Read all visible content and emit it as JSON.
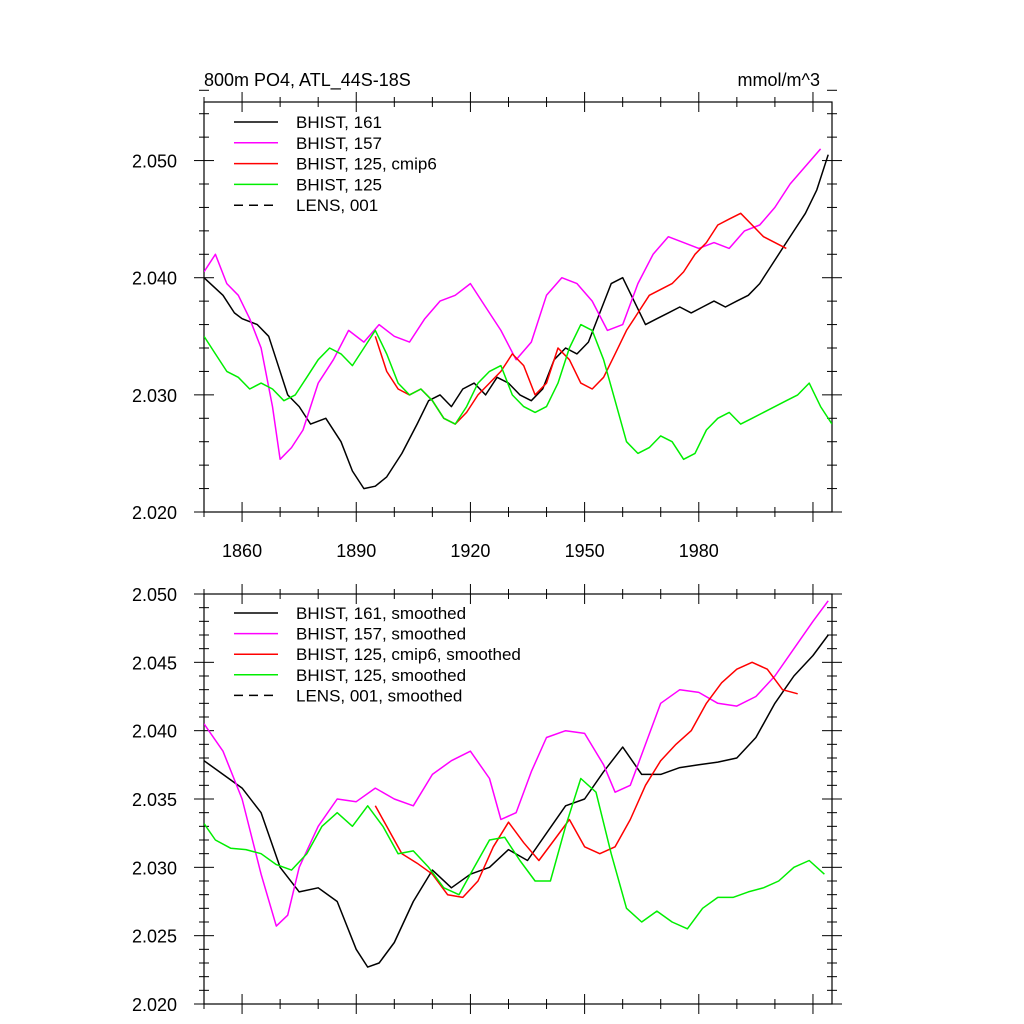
{
  "figure": {
    "title_left": "800m PO4, ATL_44S-18S",
    "title_right": "mmol/m^3"
  },
  "chart_data": [
    {
      "type": "line",
      "panel": "top",
      "title": "800m PO4, ATL_44S-18S",
      "units": "mmol/m^3",
      "xlim": [
        1850,
        2015
      ],
      "ylim": [
        2.02,
        2.055
      ],
      "x_tick_labels": [
        "1860",
        "1890",
        "1920",
        "1950",
        "1980"
      ],
      "y_tick_labels": [
        "2.020",
        "2.030",
        "2.040",
        "2.050"
      ],
      "legend_position": "top-left",
      "grid": false,
      "series": [
        {
          "name": "BHIST, 161",
          "color": "#000000",
          "dash": "solid",
          "x": [
            1850,
            1855,
            1858,
            1860,
            1864,
            1867,
            1869,
            1872,
            1875,
            1878,
            1882,
            1886,
            1889,
            1892,
            1895,
            1898,
            1902,
            1906,
            1909,
            1912,
            1915,
            1918,
            1921,
            1924,
            1927,
            1930,
            1933,
            1936,
            1939,
            1942,
            1945,
            1948,
            1951,
            1954,
            1957,
            1960,
            1963,
            1966,
            1969,
            1972,
            1975,
            1978,
            1981,
            1984,
            1987,
            1990,
            1993,
            1996,
            1999,
            2002,
            2005,
            2008,
            2011,
            2014
          ],
          "y": [
            2.04,
            2.0385,
            2.037,
            2.0365,
            2.036,
            2.035,
            2.033,
            2.03,
            2.029,
            2.0275,
            2.028,
            2.026,
            2.0235,
            2.022,
            2.0222,
            2.023,
            2.025,
            2.0275,
            2.0295,
            2.03,
            2.029,
            2.0305,
            2.031,
            2.03,
            2.0315,
            2.031,
            2.03,
            2.0295,
            2.0305,
            2.033,
            2.034,
            2.0335,
            2.0345,
            2.037,
            2.0395,
            2.04,
            2.038,
            2.036,
            2.0365,
            2.037,
            2.0375,
            2.037,
            2.0375,
            2.038,
            2.0375,
            2.038,
            2.0385,
            2.0395,
            2.041,
            2.0425,
            2.044,
            2.0455,
            2.0475,
            2.0505
          ]
        },
        {
          "name": "BHIST, 157",
          "color": "#ff00ff",
          "dash": "solid",
          "x": [
            1850,
            1853,
            1856,
            1859,
            1862,
            1865,
            1868,
            1870,
            1873,
            1876,
            1880,
            1884,
            1888,
            1892,
            1896,
            1900,
            1904,
            1908,
            1912,
            1916,
            1920,
            1924,
            1928,
            1932,
            1936,
            1940,
            1944,
            1948,
            1952,
            1956,
            1960,
            1964,
            1968,
            1972,
            1976,
            1980,
            1984,
            1988,
            1992,
            1996,
            2000,
            2004,
            2008,
            2012
          ],
          "y": [
            2.0405,
            2.042,
            2.0395,
            2.0385,
            2.0365,
            2.034,
            2.029,
            2.0245,
            2.0255,
            2.027,
            2.031,
            2.033,
            2.0355,
            2.0345,
            2.036,
            2.035,
            2.0345,
            2.0365,
            2.038,
            2.0385,
            2.0395,
            2.0375,
            2.0355,
            2.033,
            2.0345,
            2.0385,
            2.04,
            2.0395,
            2.038,
            2.0355,
            2.036,
            2.0395,
            2.042,
            2.0435,
            2.043,
            2.0425,
            2.043,
            2.0425,
            2.044,
            2.0445,
            2.046,
            2.048,
            2.0495,
            2.051
          ]
        },
        {
          "name": "BHIST, 125, cmip6",
          "color": "#ff0000",
          "dash": "solid",
          "x": [
            1895,
            1898,
            1901,
            1904,
            1907,
            1910,
            1913,
            1916,
            1919,
            1922,
            1925,
            1928,
            1931,
            1934,
            1937,
            1940,
            1943,
            1946,
            1949,
            1952,
            1955,
            1958,
            1961,
            1964,
            1967,
            1970,
            1973,
            1976,
            1979,
            1982,
            1985,
            1988,
            1991,
            1994,
            1997,
            2000,
            2003
          ],
          "y": [
            2.035,
            2.032,
            2.0305,
            2.03,
            2.0305,
            2.0295,
            2.028,
            2.0275,
            2.0285,
            2.03,
            2.031,
            2.032,
            2.0335,
            2.0325,
            2.03,
            2.031,
            2.034,
            2.033,
            2.031,
            2.0305,
            2.0315,
            2.0335,
            2.0355,
            2.037,
            2.0385,
            2.039,
            2.0395,
            2.0405,
            2.042,
            2.043,
            2.0445,
            2.045,
            2.0455,
            2.0445,
            2.0435,
            2.043,
            2.0425
          ]
        },
        {
          "name": "BHIST, 125",
          "color": "#00ee00",
          "dash": "solid",
          "x": [
            1850,
            1853,
            1856,
            1859,
            1862,
            1865,
            1868,
            1871,
            1874,
            1877,
            1880,
            1883,
            1886,
            1889,
            1892,
            1895,
            1898,
            1901,
            1904,
            1907,
            1910,
            1913,
            1916,
            1919,
            1922,
            1925,
            1928,
            1931,
            1934,
            1937,
            1940,
            1943,
            1946,
            1949,
            1952,
            1955,
            1958,
            1961,
            1964,
            1967,
            1970,
            1973,
            1976,
            1979,
            1982,
            1985,
            1988,
            1991,
            1994,
            1997,
            2000,
            2003,
            2006,
            2009,
            2012,
            2015
          ],
          "y": [
            2.035,
            2.0335,
            2.032,
            2.0315,
            2.0305,
            2.031,
            2.0305,
            2.0295,
            2.03,
            2.0315,
            2.033,
            2.034,
            2.0335,
            2.0325,
            2.034,
            2.0355,
            2.0335,
            2.031,
            2.03,
            2.0305,
            2.0295,
            2.028,
            2.0275,
            2.029,
            2.031,
            2.032,
            2.0325,
            2.03,
            2.029,
            2.0285,
            2.029,
            2.031,
            2.034,
            2.036,
            2.0355,
            2.033,
            2.0295,
            2.026,
            2.025,
            2.0255,
            2.0265,
            2.026,
            2.0245,
            2.025,
            2.027,
            2.028,
            2.0285,
            2.0275,
            2.028,
            2.0285,
            2.029,
            2.0295,
            2.03,
            2.031,
            2.029,
            2.0275
          ]
        },
        {
          "name": "LENS, 001",
          "color": "#000000",
          "dash": "dashed",
          "x": [],
          "y": []
        }
      ]
    },
    {
      "type": "line",
      "panel": "bottom",
      "xlim": [
        1850,
        2015
      ],
      "ylim": [
        2.02,
        2.05
      ],
      "x_tick_labels": [],
      "y_tick_labels": [
        "2.020",
        "2.025",
        "2.030",
        "2.035",
        "2.040",
        "2.045",
        "2.050"
      ],
      "legend_position": "top-left",
      "grid": false,
      "series": [
        {
          "name": "BHIST, 161, smoothed",
          "color": "#000000",
          "dash": "solid",
          "x": [
            1850,
            1855,
            1860,
            1865,
            1870,
            1875,
            1880,
            1885,
            1890,
            1893,
            1896,
            1900,
            1905,
            1910,
            1915,
            1920,
            1925,
            1930,
            1935,
            1940,
            1945,
            1950,
            1955,
            1960,
            1965,
            1970,
            1975,
            1980,
            1985,
            1990,
            1995,
            2000,
            2005,
            2010,
            2014
          ],
          "y": [
            2.0378,
            2.0368,
            2.0358,
            2.034,
            2.03,
            2.0282,
            2.0285,
            2.0275,
            2.024,
            2.0227,
            2.023,
            2.0245,
            2.0275,
            2.0298,
            2.0285,
            2.0295,
            2.03,
            2.0313,
            2.0305,
            2.0325,
            2.0345,
            2.035,
            2.037,
            2.0388,
            2.0368,
            2.0368,
            2.0373,
            2.0375,
            2.0377,
            2.038,
            2.0395,
            2.042,
            2.044,
            2.0455,
            2.047
          ]
        },
        {
          "name": "BHIST, 157, smoothed",
          "color": "#ff00ff",
          "dash": "solid",
          "x": [
            1850,
            1855,
            1860,
            1865,
            1869,
            1872,
            1875,
            1880,
            1885,
            1890,
            1895,
            1900,
            1905,
            1910,
            1915,
            1920,
            1925,
            1928,
            1932,
            1936,
            1940,
            1945,
            1950,
            1955,
            1958,
            1962,
            1966,
            1970,
            1975,
            1980,
            1985,
            1990,
            1995,
            2000,
            2005,
            2010,
            2014
          ],
          "y": [
            2.0405,
            2.0385,
            2.035,
            2.0295,
            2.0257,
            2.0265,
            2.03,
            2.033,
            2.035,
            2.0348,
            2.0358,
            2.035,
            2.0345,
            2.0368,
            2.0378,
            2.0385,
            2.0365,
            2.0335,
            2.034,
            2.037,
            2.0395,
            2.04,
            2.0398,
            2.0375,
            2.0355,
            2.036,
            2.039,
            2.042,
            2.043,
            2.0428,
            2.042,
            2.0418,
            2.0425,
            2.044,
            2.046,
            2.048,
            2.0495
          ]
        },
        {
          "name": "BHIST, 125, cmip6, smoothed",
          "color": "#ff0000",
          "dash": "solid",
          "x": [
            1895,
            1898,
            1902,
            1906,
            1910,
            1914,
            1918,
            1922,
            1926,
            1930,
            1934,
            1938,
            1942,
            1946,
            1950,
            1954,
            1958,
            1962,
            1966,
            1970,
            1974,
            1978,
            1982,
            1986,
            1990,
            1994,
            1998,
            2002,
            2006
          ],
          "y": [
            2.0345,
            2.033,
            2.031,
            2.0303,
            2.0295,
            2.028,
            2.0278,
            2.029,
            2.0315,
            2.0333,
            2.0318,
            2.0305,
            2.032,
            2.0335,
            2.0315,
            2.031,
            2.0315,
            2.0335,
            2.036,
            2.0378,
            2.039,
            2.04,
            2.042,
            2.0435,
            2.0445,
            2.045,
            2.0445,
            2.043,
            2.0427
          ]
        },
        {
          "name": "BHIST, 125, smoothed",
          "color": "#00ee00",
          "dash": "solid",
          "x": [
            1850,
            1853,
            1857,
            1861,
            1865,
            1869,
            1873,
            1877,
            1881,
            1885,
            1889,
            1893,
            1897,
            1901,
            1905,
            1909,
            1913,
            1917,
            1921,
            1925,
            1929,
            1933,
            1937,
            1941,
            1945,
            1949,
            1953,
            1957,
            1961,
            1965,
            1969,
            1973,
            1977,
            1981,
            1985,
            1989,
            1993,
            1997,
            2001,
            2005,
            2009,
            2013
          ],
          "y": [
            2.0332,
            2.032,
            2.0314,
            2.0313,
            2.031,
            2.0302,
            2.0298,
            2.031,
            2.033,
            2.034,
            2.033,
            2.0345,
            2.033,
            2.031,
            2.0312,
            2.03,
            2.0285,
            2.028,
            2.03,
            2.032,
            2.0322,
            2.0305,
            2.029,
            2.029,
            2.033,
            2.0365,
            2.0355,
            2.031,
            2.027,
            2.026,
            2.0268,
            2.026,
            2.0255,
            2.027,
            2.0278,
            2.0278,
            2.0282,
            2.0285,
            2.029,
            2.03,
            2.0305,
            2.0295
          ]
        },
        {
          "name": "LENS, 001, smoothed",
          "color": "#000000",
          "dash": "dashed",
          "x": [],
          "y": []
        }
      ]
    }
  ]
}
